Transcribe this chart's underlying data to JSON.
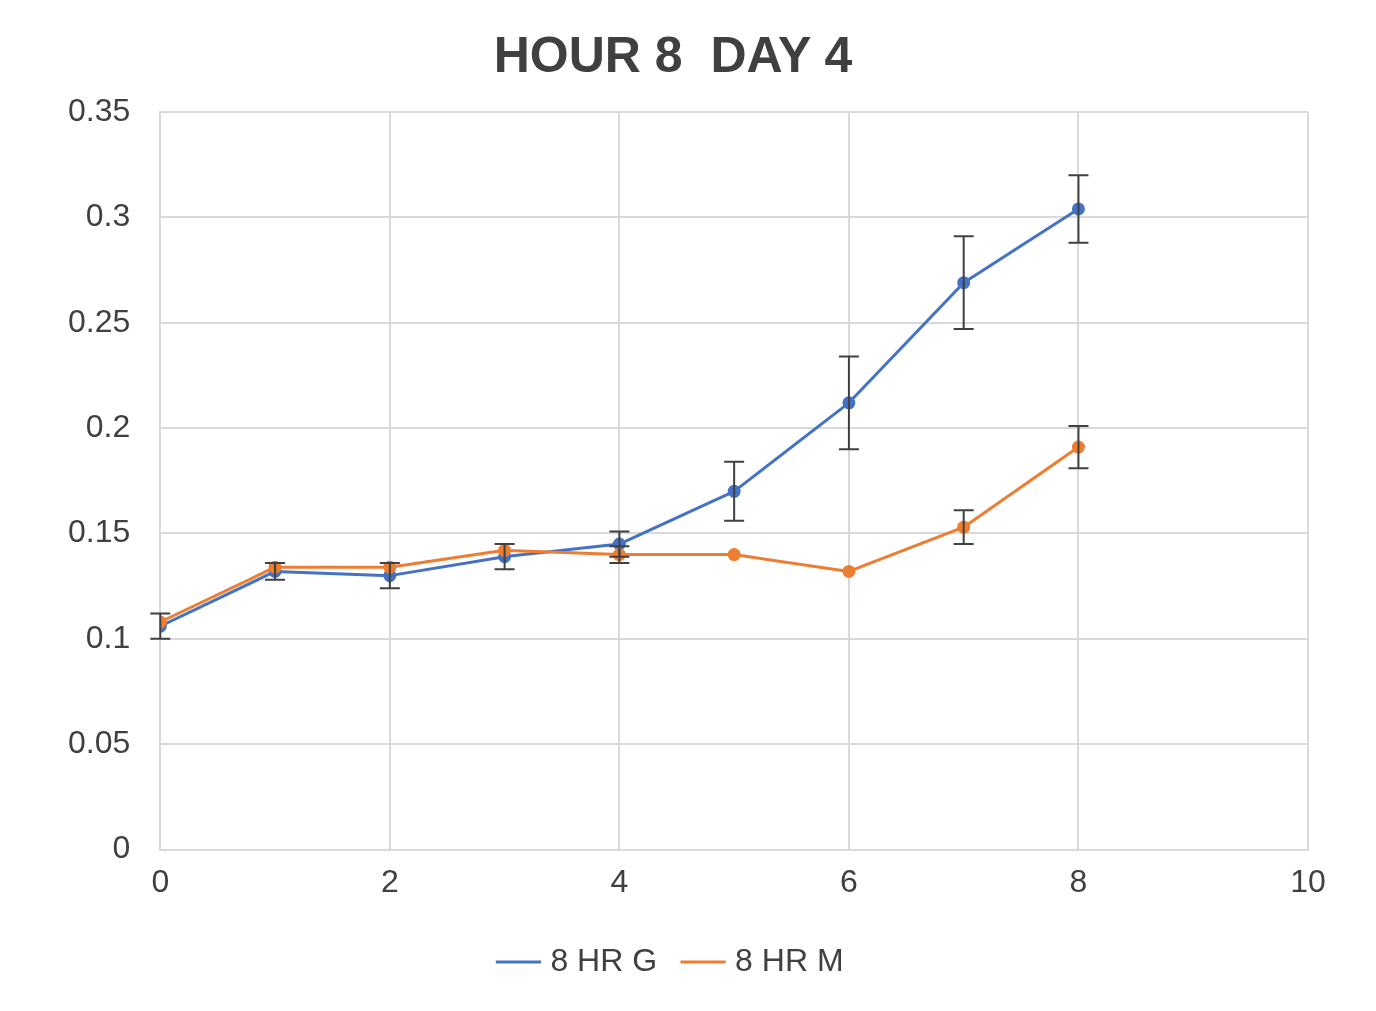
{
  "chart_data": {
    "type": "line",
    "title": "HOUR 8  DAY 4",
    "x": [
      0,
      1,
      2,
      3,
      4,
      5,
      6,
      7,
      8
    ],
    "series": [
      {
        "name": "8 HR G",
        "color": "#4472c4",
        "values": [
          0.106,
          0.132,
          0.13,
          0.139,
          0.145,
          0.17,
          0.212,
          0.269,
          0.304
        ],
        "errors": [
          0.006,
          0.004,
          0.006,
          0.006,
          0.006,
          0.014,
          0.022,
          0.022,
          0.016
        ]
      },
      {
        "name": "8 HR M",
        "color": "#ed7d31",
        "values": [
          0.108,
          0.134,
          0.134,
          0.142,
          0.14,
          0.14,
          0.132,
          0.153,
          0.191
        ],
        "errors": [
          null,
          null,
          null,
          null,
          0.004,
          null,
          null,
          0.008,
          0.01
        ]
      }
    ],
    "xlim": [
      0,
      10
    ],
    "xticks": [
      0,
      2,
      4,
      6,
      8,
      10
    ],
    "ylim": [
      0,
      0.35
    ],
    "yticks": [
      0,
      0.05,
      0.1,
      0.15,
      0.2,
      0.25,
      0.3,
      0.35
    ],
    "grid": true,
    "legend": "bottom",
    "marker": "circle",
    "line_style": "solid"
  }
}
